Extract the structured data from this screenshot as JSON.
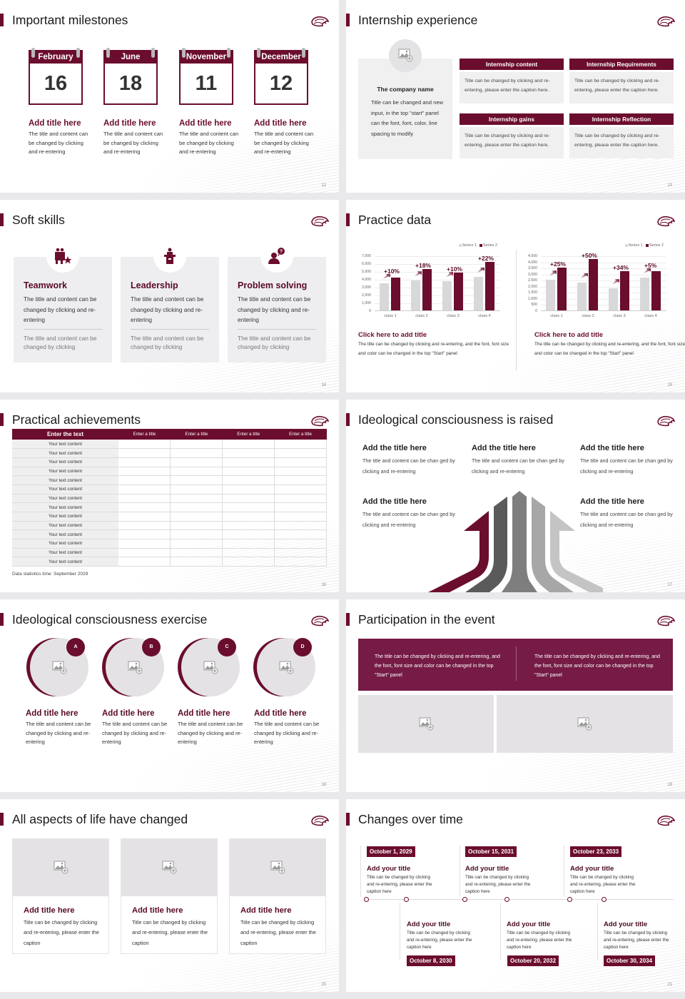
{
  "theme": {
    "accent": "#6b0d2e",
    "banner": "#751b45",
    "light_gray": "#d8d8da",
    "panel_gray": "#eeeef0"
  },
  "slides": [
    {
      "page": "12",
      "title": "Important milestones",
      "calendars": [
        {
          "month": "February",
          "day": "16",
          "heading": "Add title here",
          "text": "The title and content can be changed by clicking and re-entering"
        },
        {
          "month": "June",
          "day": "18",
          "heading": "Add title here",
          "text": "The title and content can be changed by clicking and re-entering"
        },
        {
          "month": "November",
          "day": "11",
          "heading": "Add title here",
          "text": "The title and content can be changed by clicking and re-entering"
        },
        {
          "month": "December",
          "day": "12",
          "heading": "Add title here",
          "text": "The title and content can be changed by clicking and re-entering"
        }
      ]
    },
    {
      "page": "13",
      "title": "Internship experience",
      "company": {
        "name": "The company name",
        "text": "Title can be changed and new input, in the top \"start\" panel can the font, font, color, line spacing to modify"
      },
      "cards": [
        {
          "heading": "Internship content",
          "text": "Title can be changed by clicking and re-entering, please enter the caption here."
        },
        {
          "heading": "Internship Requirements",
          "text": "Title can be changed by clicking and re-entering, please enter the caption here."
        },
        {
          "heading": "Internship gains",
          "text": "Title can be changed by clicking and re-entering, please enter the caption here."
        },
        {
          "heading": "Internship Reflection",
          "text": "Title can be changed by clicking and re-entering, please enter the caption here."
        }
      ]
    },
    {
      "page": "14",
      "title": "Soft skills",
      "skills": [
        {
          "icon": "teamwork-icon",
          "heading": "Teamwork",
          "text": "The title and content can be changed by clicking and re-entering",
          "sub": "The title and content can be changed by clicking"
        },
        {
          "icon": "leadership-podium-icon",
          "heading": "Leadership",
          "text": "The title and content can be changed by clicking and re-entering",
          "sub": "The title and content can be changed by clicking"
        },
        {
          "icon": "question-person-icon",
          "heading": "Problem solving",
          "text": "The title and content can be changed by clicking and re-entering",
          "sub": "The title and content can be changed by clicking"
        }
      ]
    },
    {
      "page": "15",
      "title": "Practice data",
      "captions": [
        {
          "heading": "Click here to add title",
          "text": "The title can be changed by clicking and re-entering, and the font, font size and color can be changed in the top \"Start\" panel"
        },
        {
          "heading": "Click here to add title",
          "text": "The title can be changed by clicking and re-entering, and the font, font size and color can be changed in the top \"Start\" panel"
        }
      ]
    },
    {
      "page": "16",
      "title": "Practical achievements",
      "table": {
        "headers": [
          "Enter the text",
          "Enter a title",
          "Enter a title",
          "Enter a title",
          "Enter a title"
        ],
        "rows": [
          "Your text content",
          "Your text content",
          "Your text content",
          "Your text content",
          "Your text content",
          "Your text content",
          "Your text content",
          "Your text content",
          "Your text content",
          "Your text content",
          "Your text content",
          "Your text content",
          "Your text content",
          "Your text content"
        ]
      },
      "note": "Data statistics time: September 2029"
    },
    {
      "page": "17",
      "title": "Ideological consciousness is raised",
      "blocks": [
        {
          "heading": "Add the title here",
          "text": "The title and content can be chan ged by clicking and re-entering"
        },
        {
          "heading": "Add the title here",
          "text": "The title and content can be chan ged by clicking and re-entering"
        },
        {
          "heading": "Add the title here",
          "text": "The title and content can be chan ged by clicking and re-entering"
        },
        {
          "heading": "Add the title here",
          "text": "The title and content can be chan ged by clicking and re-entering"
        },
        {
          "heading": "Add the title here",
          "text": "The title and content can be chan ged by clicking and re-entering"
        }
      ]
    },
    {
      "page": "18",
      "title": "Ideological consciousness exercise",
      "items": [
        {
          "badge": "A",
          "heading": "Add title here",
          "text": "The title and content can be changed by clicking and re-entering"
        },
        {
          "badge": "B",
          "heading": "Add title here",
          "text": "The title and content can be changed by clicking and re-entering"
        },
        {
          "badge": "C",
          "heading": "Add title here",
          "text": "The title and content can be changed by clicking and re-entering"
        },
        {
          "badge": "D",
          "heading": "Add title here",
          "text": "The title and content can be changed by clicking and re-entering"
        }
      ]
    },
    {
      "page": "19",
      "title": "Participation in the event",
      "banner": [
        "The title can be changed by clicking and re-entering, and the font, font size and color can be changed in the top \"Start\" panel",
        "The title can be changed by clicking and re-entering, and the font, font size and color can be changed in the top \"Start\" panel"
      ]
    },
    {
      "page": "20",
      "title": "All aspects of life have changed",
      "cards": [
        {
          "heading": "Add title here",
          "text": "Title can be changed by clicking and re-entering, please enter the caption"
        },
        {
          "heading": "Add title here",
          "text": "Title can be changed by clicking and re-entering, please enter the caption"
        },
        {
          "heading": "Add title here",
          "text": "Title can be changed by clicking and re-entering, please enter the caption"
        }
      ]
    },
    {
      "page": "21",
      "title": "Changes over time",
      "events": [
        {
          "date": "October 1, 2029",
          "heading": "Add your title",
          "text": "Title can be changed by clicking and re-entering, please enter the caption here"
        },
        {
          "date": "October 8, 2030",
          "heading": "Add your title",
          "text": "Title can be changed by clicking and re-entering, please enter the caption here"
        },
        {
          "date": "October 15, 2031",
          "heading": "Add your title",
          "text": "Title can be changed by clicking and re-entering, please enter the caption here"
        },
        {
          "date": "October 20, 2032",
          "heading": "Add your title",
          "text": "Title can be changed by clicking and re-entering, please enter the caption here"
        },
        {
          "date": "October 23, 2033",
          "heading": "Add your title",
          "text": "Title can be changed by clicking and re-entering, please enter the caption here"
        },
        {
          "date": "October 30, 2034",
          "heading": "Add your title",
          "text": "Title can be changed by clicking and re-entering, please enter the caption here"
        }
      ]
    }
  ],
  "chart_data": [
    {
      "type": "bar",
      "title": "",
      "categories": [
        "class 1",
        "class 2",
        "class 3",
        "class 4"
      ],
      "series": [
        {
          "name": "Series 1",
          "values": [
            3500,
            3800,
            3700,
            4300
          ]
        },
        {
          "name": "Series 2",
          "values": [
            4200,
            5300,
            4800,
            6200
          ]
        }
      ],
      "annotations": [
        "+10%",
        "+18%",
        "+10%",
        "+22%"
      ],
      "yticks": [
        "0",
        "1,000",
        "2,000",
        "3,000",
        "4,000",
        "5,000",
        "6,000",
        "7,000"
      ],
      "ylim": [
        0,
        7000
      ],
      "xlabel": "",
      "ylabel": "",
      "legend_position": "top-right",
      "grid": true
    },
    {
      "type": "bar",
      "title": "",
      "categories": [
        "class 1",
        "class 2",
        "class 3",
        "class 4"
      ],
      "series": [
        {
          "name": "Series 1",
          "values": [
            2500,
            2300,
            1800,
            2700
          ]
        },
        {
          "name": "Series 2",
          "values": [
            3500,
            4200,
            3200,
            3200
          ]
        }
      ],
      "annotations": [
        "+25%",
        "+50%",
        "+34%",
        "+5%"
      ],
      "yticks": [
        "0",
        "500",
        "1,000",
        "1,500",
        "2,000",
        "2,500",
        "3,000",
        "3,500",
        "4,000",
        "4,500"
      ],
      "ylim": [
        0,
        4500
      ],
      "xlabel": "",
      "ylabel": "",
      "legend_position": "top-right",
      "grid": true
    }
  ]
}
